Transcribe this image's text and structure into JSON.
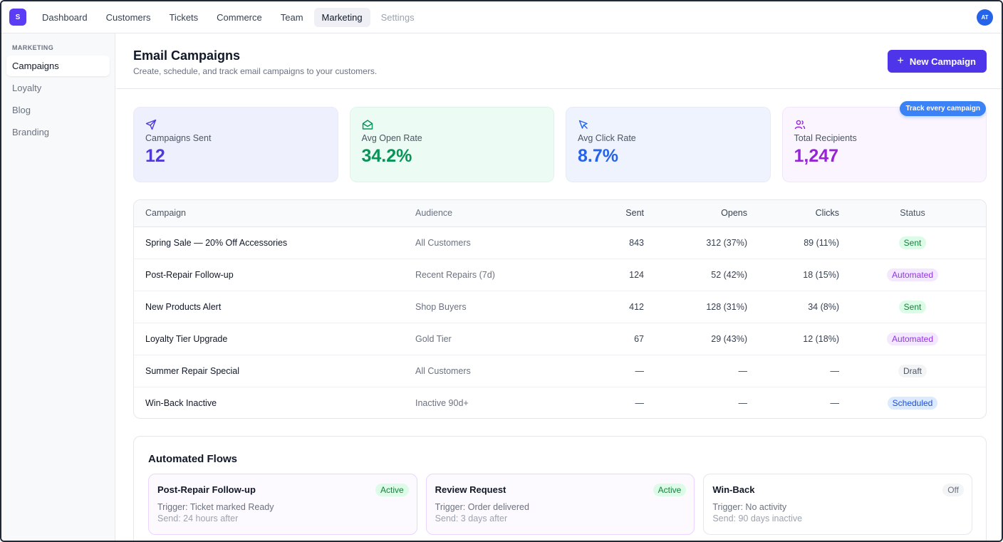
{
  "app": {
    "logo_letter": "S",
    "avatar_initials": "AT"
  },
  "topnav": [
    {
      "label": "Dashboard"
    },
    {
      "label": "Customers"
    },
    {
      "label": "Tickets"
    },
    {
      "label": "Commerce"
    },
    {
      "label": "Team"
    },
    {
      "label": "Marketing",
      "active": true
    },
    {
      "label": "Settings",
      "muted": true
    }
  ],
  "sidebar": {
    "section": "MARKETING",
    "items": [
      {
        "label": "Campaigns",
        "active": true
      },
      {
        "label": "Loyalty"
      },
      {
        "label": "Blog"
      },
      {
        "label": "Branding"
      }
    ]
  },
  "header": {
    "title": "Email Campaigns",
    "subtitle": "Create, schedule, and track email campaigns to your customers.",
    "new_button": "New Campaign"
  },
  "stats": [
    {
      "label": "Campaigns Sent",
      "value": "12",
      "icon": "send-icon"
    },
    {
      "label": "Avg Open Rate",
      "value": "34.2%",
      "icon": "mail-open-icon"
    },
    {
      "label": "Avg Click Rate",
      "value": "8.7%",
      "icon": "cursor-click-icon"
    },
    {
      "label": "Total Recipients",
      "value": "1,247",
      "icon": "users-icon"
    }
  ],
  "track_pill": "Track every campaign",
  "table": {
    "headers": {
      "campaign": "Campaign",
      "audience": "Audience",
      "sent": "Sent",
      "opens": "Opens",
      "clicks": "Clicks",
      "status": "Status"
    },
    "rows": [
      {
        "campaign": "Spring Sale — 20% Off Accessories",
        "audience": "All Customers",
        "sent": "843",
        "opens": "312 (37%)",
        "clicks": "89 (11%)",
        "status": "Sent",
        "kind": "sent"
      },
      {
        "campaign": "Post-Repair Follow-up",
        "audience": "Recent Repairs (7d)",
        "sent": "124",
        "opens": "52 (42%)",
        "clicks": "18 (15%)",
        "status": "Automated",
        "kind": "auto"
      },
      {
        "campaign": "New Products Alert",
        "audience": "Shop Buyers",
        "sent": "412",
        "opens": "128 (31%)",
        "clicks": "34 (8%)",
        "status": "Sent",
        "kind": "sent"
      },
      {
        "campaign": "Loyalty Tier Upgrade",
        "audience": "Gold Tier",
        "sent": "67",
        "opens": "29 (43%)",
        "clicks": "12 (18%)",
        "status": "Automated",
        "kind": "auto"
      },
      {
        "campaign": "Summer Repair Special",
        "audience": "All Customers",
        "sent": "—",
        "opens": "—",
        "clicks": "—",
        "status": "Draft",
        "kind": "draft"
      },
      {
        "campaign": "Win-Back Inactive",
        "audience": "Inactive 90d+",
        "sent": "—",
        "opens": "—",
        "clicks": "—",
        "status": "Scheduled",
        "kind": "sched"
      }
    ]
  },
  "flows": {
    "title": "Automated Flows",
    "items": [
      {
        "name": "Post-Repair Follow-up",
        "status": "Active",
        "trigger": "Trigger: Ticket marked Ready",
        "send": "Send: 24 hours after"
      },
      {
        "name": "Review Request",
        "status": "Active",
        "trigger": "Trigger: Order delivered",
        "send": "Send: 3 days after"
      },
      {
        "name": "Win-Back",
        "status": "Off",
        "trigger": "Trigger: No activity",
        "send": "Send: 90 days inactive"
      }
    ]
  }
}
